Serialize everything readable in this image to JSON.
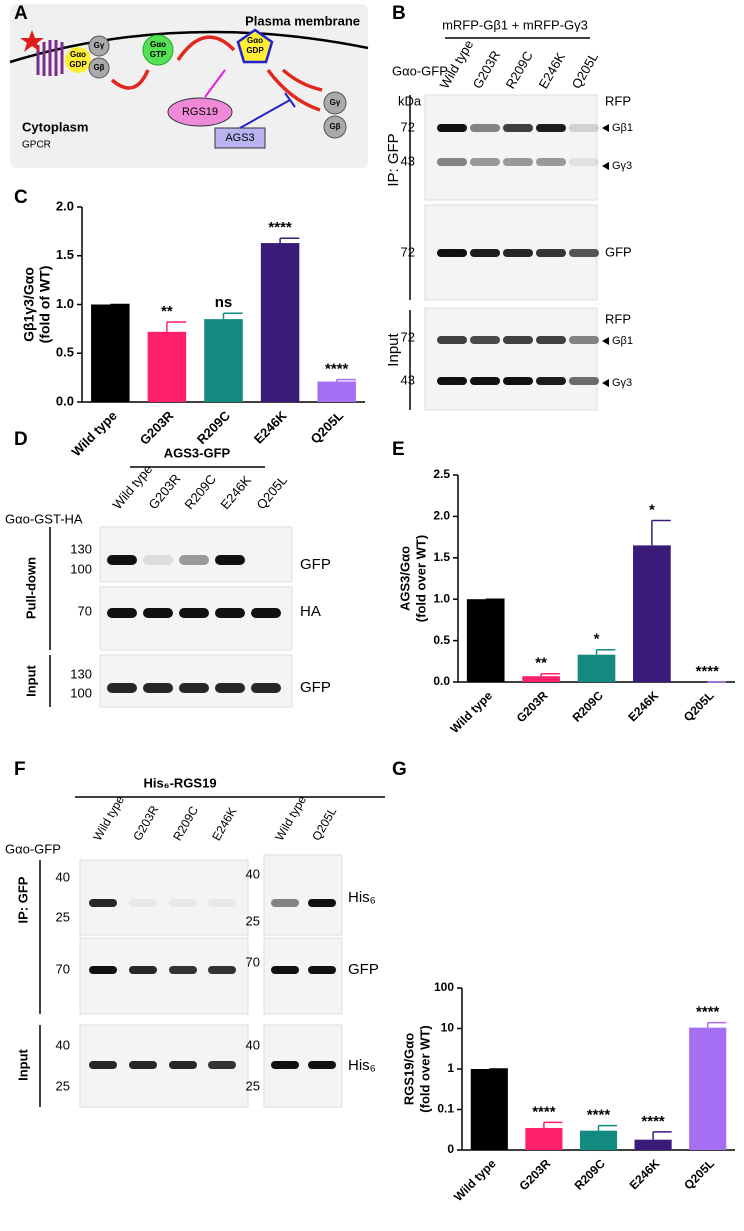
{
  "chart_data": [
    {
      "type": "bar",
      "panel": "C",
      "ylabel": [
        "Gβ1γ3/Gαo",
        "(fold of WT)"
      ],
      "categories": [
        "Wild type",
        "G203R",
        "R209C",
        "E246K",
        "Q205L"
      ],
      "values": [
        1,
        0.72,
        0.85,
        1.63,
        0.21
      ],
      "errors": [
        0,
        0.1,
        0.06,
        0.05,
        0.02
      ],
      "colors": [
        "#000000",
        "#ff1f6b",
        "#138a80",
        "#3b1b7a",
        "#a66ef2"
      ],
      "annotations": [
        null,
        "**",
        "ns",
        "****",
        "****"
      ],
      "ylim": [
        0,
        2
      ],
      "yticks": [
        {
          "value": 0,
          "label": "0.0"
        },
        {
          "value": 0.5,
          "label": "0.5"
        },
        {
          "value": 1,
          "label": "1.0"
        },
        {
          "value": 1.5,
          "label": "1.5"
        },
        {
          "value": 2,
          "label": "2.0"
        }
      ],
      "log": false
    },
    {
      "type": "bar",
      "panel": "E",
      "ylabel": [
        "AGS3/Gαo",
        "(fold over WT)"
      ],
      "categories": [
        "Wild type",
        "G203R",
        "R209C",
        "E246K",
        "Q205L"
      ],
      "values": [
        1,
        0.07,
        0.33,
        1.65,
        0
      ],
      "errors": [
        0,
        0.03,
        0.06,
        0.3,
        0
      ],
      "colors": [
        "#000000",
        "#ff1f6b",
        "#138a80",
        "#3b1b7a",
        "#a66ef2"
      ],
      "annotations": [
        null,
        "**",
        "*",
        "*",
        "****"
      ],
      "ylim": [
        0,
        2.5
      ],
      "yticks": [
        {
          "value": 0,
          "label": "0.0"
        },
        {
          "value": 0.5,
          "label": "0.5"
        },
        {
          "value": 1,
          "label": "1.0"
        },
        {
          "value": 1.5,
          "label": "1.5"
        },
        {
          "value": 2,
          "label": "2.0"
        },
        {
          "value": 2.5,
          "label": "2.5"
        }
      ],
      "log": false
    },
    {
      "type": "bar",
      "panel": "G",
      "ylabel": [
        "RGS19/Gαo",
        "(fold over WT)"
      ],
      "categories": [
        "Wild type",
        "G203R",
        "R209C",
        "E246K",
        "Q205L"
      ],
      "values": [
        1,
        0.035,
        0.03,
        0.018,
        10.5
      ],
      "errors": [
        0,
        0.013,
        0.01,
        0.01,
        3.5
      ],
      "colors": [
        "#000000",
        "#ff1f6b",
        "#138a80",
        "#3b1b7a",
        "#a66ef2"
      ],
      "annotations": [
        null,
        "****",
        "****",
        "****",
        "****"
      ],
      "ylim": [
        0.01,
        100
      ],
      "yticks": [
        {
          "value": 0.01,
          "label": "0"
        },
        {
          "value": 0.1,
          "label": "0.1"
        },
        1,
        10,
        100
      ],
      "log": true
    }
  ],
  "diagram": {
    "label": "A",
    "membrane": "Plasma membrane",
    "cytoplasm": "Cytoplasm",
    "gpcr": "GPCR",
    "gdp_1": [
      "Gαo",
      "GDP"
    ],
    "gtp": [
      "Gαo",
      "GTP"
    ],
    "gdp_2": [
      "Gαo",
      "GDP"
    ],
    "gg_1": "Gγ",
    "gb_1": "Gβ",
    "gg_2": "Gγ",
    "gb_2": "Gβ",
    "rgs": "RGS19",
    "ags": "AGS3"
  },
  "blot_b": {
    "label": "B",
    "header": "mRFP-Gβ1 + mRFP-Gγ3",
    "row_label": "Gαo-GFP",
    "lanes": [
      "Wild type",
      "G203R",
      "R209C",
      "E246K",
      "Q205L"
    ],
    "kda": "kDa",
    "markers": [
      "72",
      "43",
      "72",
      "72",
      "43"
    ],
    "right": [
      "RFP",
      "Gβ1",
      "Gγ3",
      "GFP",
      "RFP",
      "Gβ1",
      "Gγ3"
    ],
    "groups": [
      "IP: GFP",
      "Input"
    ]
  },
  "blot_d": {
    "label": "D",
    "header": "AGS3-GFP",
    "row_label": "Gαo-GST-HA",
    "lanes": [
      "Wild type",
      "G203R",
      "R209C",
      "E246K",
      "Q205L"
    ],
    "markers": [
      "130",
      "100",
      "70",
      "130",
      "100"
    ],
    "right": [
      "GFP",
      "HA",
      "GFP"
    ],
    "groups": [
      "Pull-down",
      "Input"
    ]
  },
  "blot_f": {
    "label": "F",
    "header": "His₆-RGS19",
    "row_label": "Gαo-GFP",
    "lanes": [
      "Wild type",
      "G203R",
      "R209C",
      "E246K",
      "Wild type",
      "Q205L"
    ],
    "markers": [
      "40",
      "25",
      "70",
      "40",
      "25",
      "40",
      "25",
      "70",
      "40",
      "25"
    ],
    "right": [
      "His₆",
      "GFP",
      "His₆"
    ],
    "groups": [
      "IP: GFP",
      "Input"
    ]
  }
}
